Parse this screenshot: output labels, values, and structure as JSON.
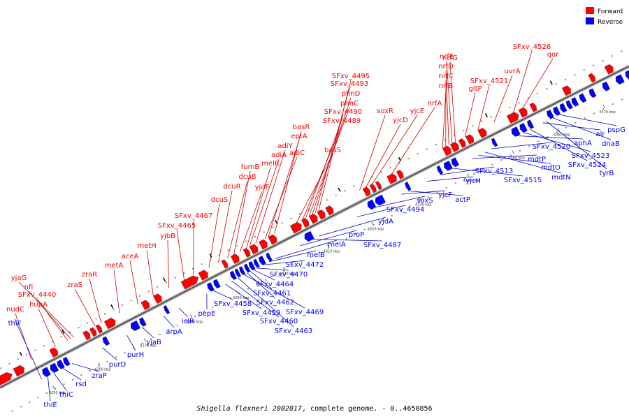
{
  "caption": {
    "organism": "Shigella flexneri 2002017",
    "rest": ", complete genome. - 0..4650856"
  },
  "legend": [
    {
      "key": "forward",
      "label": "Forward",
      "color": "#ff0000"
    },
    {
      "key": "reverse",
      "label": "Reverse",
      "color": "#0000ff"
    }
  ],
  "colors": {
    "forward": "#ff0000",
    "reverse": "#0000ff",
    "backbone": "#999999",
    "forward_line": "#cc0000",
    "reverse_line": "#0000cc"
  },
  "scale_ticks": [
    "4250 kbp",
    "4260 kbp",
    "4270 kbp",
    "4280 kbp",
    "4290 kbp",
    "4300 kbp",
    "4310 kbp",
    "4320 kbp",
    "4330 kbp",
    "4340 kbp",
    "4350 kbp",
    "4360 kbp",
    "4370 kbp"
  ],
  "forward_labels": [
    "nudC",
    "hupA",
    "SFxv_4440",
    "nfi",
    "yjaG",
    "zraS",
    "zraR",
    "metA",
    "aceA",
    "metH",
    "yjbB",
    "SFxv_4465",
    "SFxv_4467",
    "dcuS",
    "dcuR",
    "dcuB",
    "fumB",
    "yjdF",
    "melR",
    "adiA",
    "adiY",
    "adiC",
    "eptA",
    "basR",
    "basS",
    "SFxv_4489",
    "SFxv_4490",
    "phnC",
    "phnD",
    "SFxv_4493",
    "SFxv_4495",
    "yjcD",
    "soxR",
    "yjcE",
    "nrfA",
    "nrfB",
    "nrfC",
    "nrfD",
    "nrfE",
    "nrfG",
    "gltP",
    "SFxv_4521",
    "uvrA",
    "SFxv_4526",
    "qor"
  ],
  "reverse_labels": [
    "thiF",
    "thiE",
    "thiC",
    "rsd",
    "zraP",
    "purD",
    "purH",
    "yjaB",
    "arpA",
    "iclR",
    "pepE",
    "SFxv_4458",
    "SFxv_4459",
    "SFxv_4460",
    "SFxv_4463",
    "SFxv_4469",
    "SFxv_4462",
    "SFxv_4461",
    "SFxv_4464",
    "SFxv_4470",
    "SFxv_4472",
    "melB",
    "melA",
    "proP",
    "SFxv_4487",
    "yjdA",
    "SFxv_4494",
    "soxS",
    "yjcF",
    "actP",
    "yjcH",
    "SFxv_4513",
    "SFxv_4515",
    "mdtP",
    "mdtO",
    "mdtN",
    "SFxv_4520",
    "aphA",
    "SFxv_4523",
    "SFxv_4524",
    "alr",
    "tyrB",
    "dnaB",
    "pspG"
  ]
}
